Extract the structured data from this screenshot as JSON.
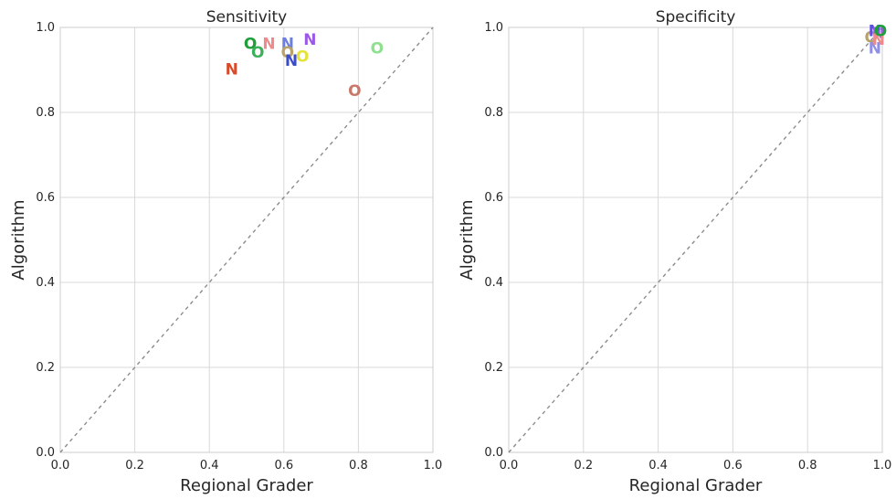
{
  "chart_data": [
    {
      "type": "scatter",
      "title": "Sensitivity",
      "xlabel": "Regional Grader",
      "ylabel": "Algorithm",
      "xlim": [
        0,
        1
      ],
      "ylim": [
        0,
        1
      ],
      "xticks": [
        "0.0",
        "0.2",
        "0.4",
        "0.6",
        "0.8",
        "1.0"
      ],
      "yticks": [
        "0.0",
        "0.2",
        "0.4",
        "0.6",
        "0.8",
        "1.0"
      ],
      "grid": true,
      "reference_line": "y = x (dashed)",
      "points": [
        {
          "marker": "N",
          "x": 0.46,
          "y": 0.9,
          "color": "#d94a2b"
        },
        {
          "marker": "O",
          "x": 0.51,
          "y": 0.96,
          "color": "#1f9e3a"
        },
        {
          "marker": "O",
          "x": 0.53,
          "y": 0.94,
          "color": "#3cb05a"
        },
        {
          "marker": "N",
          "x": 0.56,
          "y": 0.96,
          "color": "#f08a8a"
        },
        {
          "marker": "N",
          "x": 0.61,
          "y": 0.96,
          "color": "#6b7fe0"
        },
        {
          "marker": "O",
          "x": 0.61,
          "y": 0.94,
          "color": "#b8a46a"
        },
        {
          "marker": "N",
          "x": 0.62,
          "y": 0.92,
          "color": "#3b4cc9"
        },
        {
          "marker": "O",
          "x": 0.65,
          "y": 0.93,
          "color": "#e3e33a"
        },
        {
          "marker": "N",
          "x": 0.67,
          "y": 0.97,
          "color": "#9b59e6"
        },
        {
          "marker": "O",
          "x": 0.79,
          "y": 0.85,
          "color": "#c9786a"
        },
        {
          "marker": "O",
          "x": 0.85,
          "y": 0.95,
          "color": "#8de08d"
        }
      ]
    },
    {
      "type": "scatter",
      "title": "Specificity",
      "xlabel": "Regional Grader",
      "ylabel": "Algorithm",
      "xlim": [
        0,
        1
      ],
      "ylim": [
        0,
        1
      ],
      "xticks": [
        "0.0",
        "0.2",
        "0.4",
        "0.6",
        "0.8",
        "1.0"
      ],
      "yticks": [
        "0.0",
        "0.2",
        "0.4",
        "0.6",
        "0.8",
        "1.0"
      ],
      "grid": true,
      "reference_line": "y = x (dashed)",
      "points": [
        {
          "marker": "O",
          "x": 0.97,
          "y": 0.975,
          "color": "#b8a46a"
        },
        {
          "marker": "N",
          "x": 0.98,
          "y": 0.95,
          "color": "#8f8fe6"
        },
        {
          "marker": "N",
          "x": 0.98,
          "y": 0.99,
          "color": "#5f4fe0"
        },
        {
          "marker": "N",
          "x": 0.99,
          "y": 0.985,
          "color": "#9b59e6"
        },
        {
          "marker": "N",
          "x": 0.99,
          "y": 0.97,
          "color": "#f08a8a"
        },
        {
          "marker": "O",
          "x": 0.995,
          "y": 0.99,
          "color": "#1f9e3a"
        }
      ]
    }
  ]
}
